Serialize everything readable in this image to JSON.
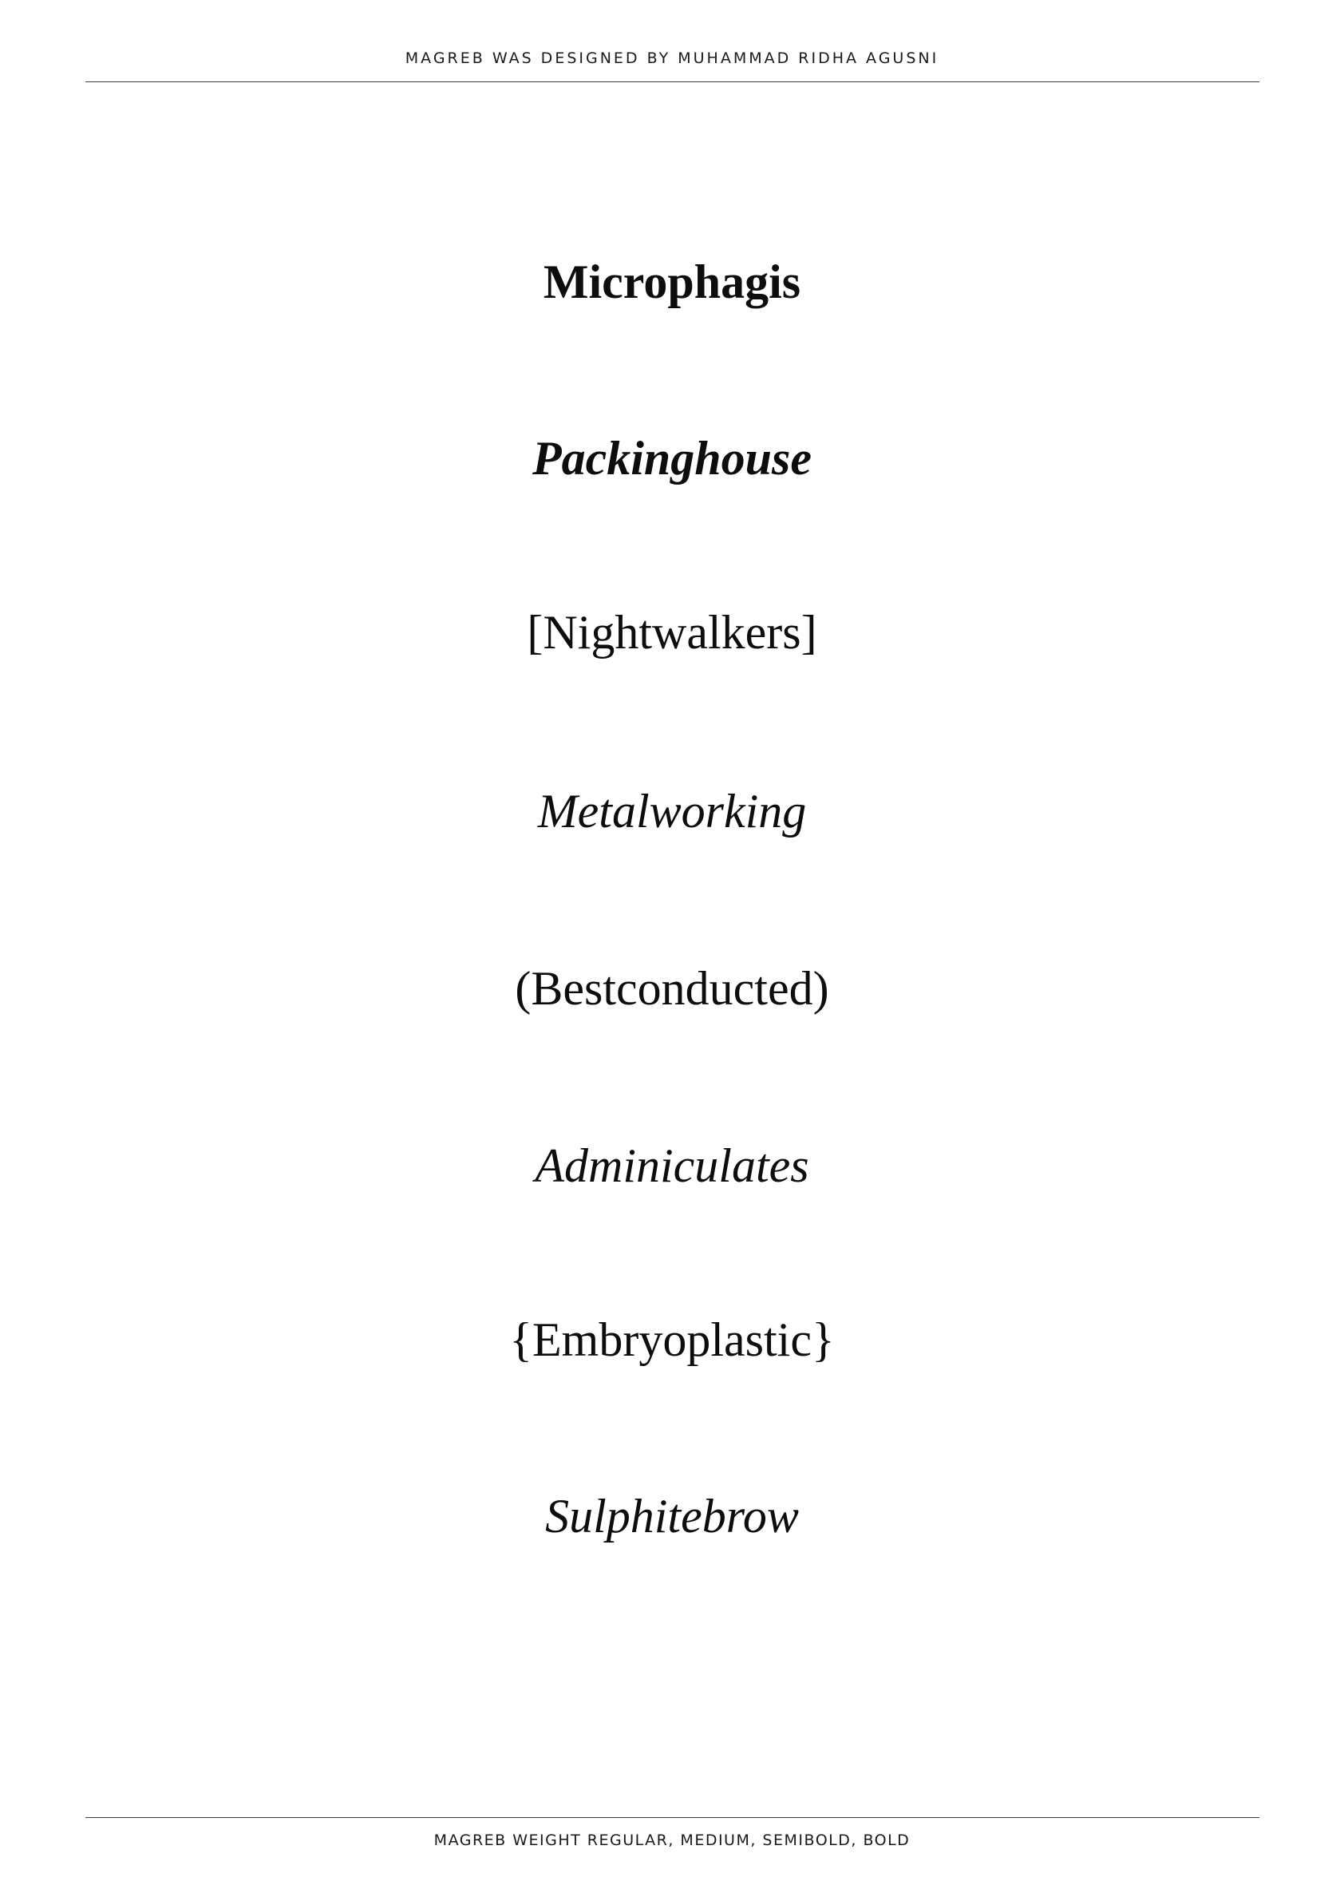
{
  "header": {
    "credit": "MAGREB WAS DESIGNED BY MUHAMMAD RIDHA AGUSNI"
  },
  "specimen": {
    "words": [
      {
        "text": "Microphagis",
        "style": "roman",
        "weight": "bold"
      },
      {
        "text": "Packinghouse",
        "style": "italic",
        "weight": "semibold"
      },
      {
        "text": "[Nightwalkers]",
        "style": "roman",
        "weight": "medium"
      },
      {
        "text": "Metalworking",
        "style": "italic",
        "weight": "medium"
      },
      {
        "text": "(Bestconducted)",
        "style": "roman",
        "weight": "regular"
      },
      {
        "text": "Adminiculates",
        "style": "italic",
        "weight": "regular"
      },
      {
        "text": "{Embryoplastic}",
        "style": "roman",
        "weight": "regular"
      },
      {
        "text": "Sulphitebrow",
        "style": "italic",
        "weight": "regular"
      }
    ]
  },
  "footer": {
    "weights": "MAGREB WEIGHT REGULAR, MEDIUM, SEMIBOLD, BOLD"
  },
  "colors": {
    "ink": "#0d0d0d",
    "rule": "#3a3a3a",
    "background": "#ffffff"
  }
}
